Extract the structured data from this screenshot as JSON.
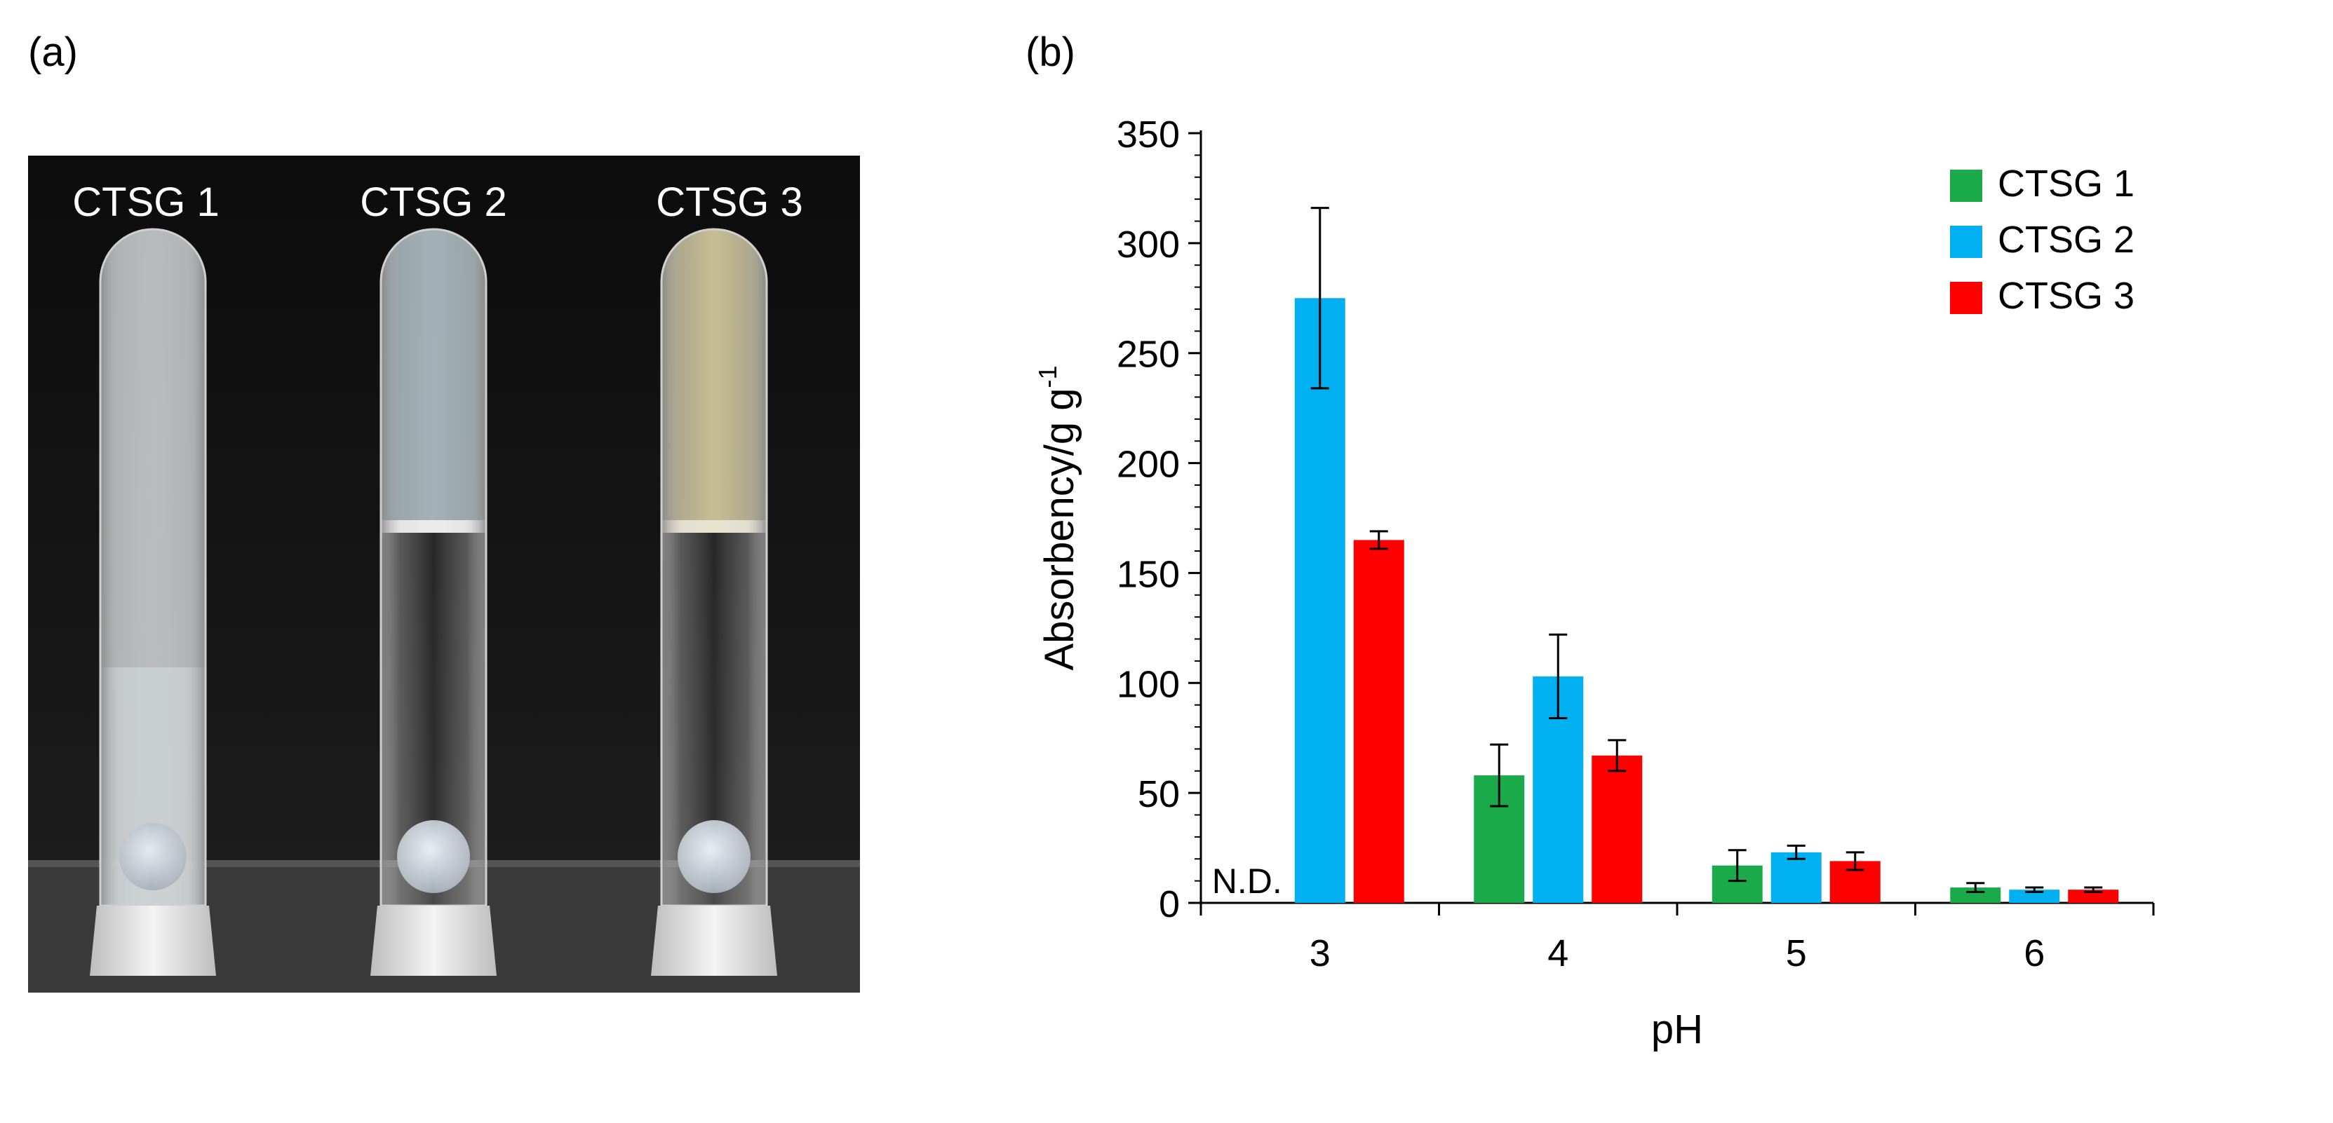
{
  "panels": {
    "a": "(a)",
    "b": "(b)"
  },
  "photo": {
    "tube_labels": [
      "CTSG 1",
      "CTSG 2",
      "CTSG 3"
    ]
  },
  "chart_data": {
    "type": "bar",
    "xlabel": "pH",
    "ylabel": "Absorbency/g g",
    "ylabel_superscript": "-1",
    "categories": [
      "3",
      "4",
      "5",
      "6"
    ],
    "ylim": [
      0,
      350
    ],
    "yticks": [
      0,
      50,
      100,
      150,
      200,
      250,
      300,
      350
    ],
    "legend_position": "top-right",
    "grid": false,
    "series": [
      {
        "name": "CTSG 1",
        "color": "#1aaa4a",
        "values": [
          null,
          58,
          17,
          7
        ],
        "errors": [
          null,
          14,
          7,
          2
        ]
      },
      {
        "name": "CTSG 2",
        "color": "#00b0f0",
        "values": [
          275,
          103,
          23,
          6
        ],
        "errors": [
          41,
          19,
          3,
          1
        ]
      },
      {
        "name": "CTSG 3",
        "color": "#ff0000",
        "values": [
          165,
          67,
          19,
          6
        ],
        "errors": [
          4,
          7,
          4,
          1
        ]
      }
    ],
    "annotations": [
      {
        "text": "N.D.",
        "category": "3",
        "series": "CTSG 1"
      }
    ]
  }
}
